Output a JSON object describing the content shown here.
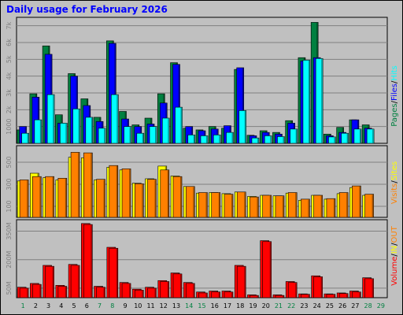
{
  "title": "Daily usage for February 2026",
  "colors": {
    "background": "#c0c0c0",
    "hits": "#00ffff",
    "files": "#0000ff",
    "pages": "#008040",
    "visits": "#ff8000",
    "sites": "#ffff00",
    "in_out": "#ff0000",
    "volume": "#ff0000",
    "weekend_label": "#008040",
    "weekday_label": "#000000"
  },
  "labels": {
    "top_panel": [
      "Pages",
      "Files",
      "Hits"
    ],
    "mid_panel": [
      "Visits",
      "Sites"
    ],
    "bot_panel": [
      "Volume",
      "IN",
      "OUT"
    ]
  },
  "chart_data": [
    {
      "type": "bar",
      "title": "Hits / Files / Pages",
      "categories": [
        "1",
        "2",
        "3",
        "4",
        "5",
        "6",
        "7",
        "8",
        "9",
        "10",
        "11",
        "12",
        "13",
        "14",
        "15",
        "16",
        "17",
        "18",
        "19",
        "20",
        "21",
        "22",
        "23",
        "24",
        "25",
        "26",
        "27",
        "28",
        "29"
      ],
      "weekend_days": [
        "1",
        "7",
        "8",
        "14",
        "15",
        "21",
        "22",
        "28",
        "29"
      ],
      "yticks": [
        1000,
        2000,
        3000,
        4000,
        5000,
        6000,
        7000
      ],
      "ytick_labels": [
        "1000",
        "2k",
        "3k",
        "4k",
        "5k",
        "6k",
        "7k"
      ],
      "ylim": [
        0,
        7500
      ],
      "series": [
        {
          "name": "Pages",
          "values": [
            800,
            2950,
            5800,
            1700,
            4150,
            2650,
            1550,
            6100,
            1900,
            1100,
            1500,
            2950,
            4800,
            900,
            800,
            1000,
            900,
            4400,
            480,
            750,
            650,
            1350,
            5100,
            7200,
            550,
            950,
            1400,
            1100,
            null
          ]
        },
        {
          "name": "Files",
          "values": [
            1000,
            2750,
            5300,
            1200,
            4000,
            2250,
            1300,
            5950,
            1450,
            1000,
            1150,
            2400,
            4700,
            1000,
            750,
            850,
            1050,
            4500,
            450,
            650,
            550,
            1200,
            4900,
            5100,
            450,
            650,
            1400,
            900,
            null
          ]
        },
        {
          "name": "Hits",
          "values": [
            600,
            1400,
            2900,
            1200,
            2050,
            1550,
            900,
            2900,
            1000,
            600,
            1000,
            1500,
            2150,
            500,
            450,
            500,
            650,
            1950,
            320,
            450,
            400,
            850,
            4950,
            5050,
            380,
            600,
            850,
            850,
            null
          ]
        }
      ]
    },
    {
      "type": "bar",
      "title": "Visits / Sites",
      "categories": [
        "1",
        "2",
        "3",
        "4",
        "5",
        "6",
        "7",
        "8",
        "9",
        "10",
        "11",
        "12",
        "13",
        "14",
        "15",
        "16",
        "17",
        "18",
        "19",
        "20",
        "21",
        "22",
        "23",
        "24",
        "25",
        "26",
        "27",
        "28",
        "29"
      ],
      "yticks": [
        100,
        300,
        500
      ],
      "ytick_labels": [
        "100",
        "300",
        "500"
      ],
      "ylim": [
        0,
        650
      ],
      "series": [
        {
          "name": "Sites",
          "values": [
            330,
            400,
            360,
            340,
            545,
            540,
            340,
            455,
            430,
            310,
            350,
            465,
            375,
            280,
            220,
            225,
            215,
            230,
            190,
            200,
            195,
            220,
            155,
            200,
            165,
            215,
            270,
            200,
            null
          ]
        },
        {
          "name": "Visits",
          "values": [
            340,
            370,
            370,
            355,
            590,
            585,
            345,
            470,
            440,
            305,
            345,
            430,
            370,
            280,
            225,
            225,
            210,
            230,
            185,
            200,
            195,
            225,
            165,
            200,
            170,
            225,
            285,
            210,
            null
          ]
        }
      ]
    },
    {
      "type": "bar",
      "title": "Volume",
      "categories": [
        "1",
        "2",
        "3",
        "4",
        "5",
        "6",
        "7",
        "8",
        "9",
        "10",
        "11",
        "12",
        "13",
        "14",
        "15",
        "16",
        "17",
        "18",
        "19",
        "20",
        "21",
        "22",
        "23",
        "24",
        "25",
        "26",
        "27",
        "28",
        "29"
      ],
      "yticks": [
        50,
        200,
        350
      ],
      "ytick_labels": [
        "50M",
        "200M",
        "350M"
      ],
      "ylim": [
        0,
        410
      ],
      "series": [
        {
          "name": "IN",
          "values": [
            55,
            75,
            170,
            65,
            175,
            390,
            60,
            265,
            80,
            45,
            55,
            90,
            130,
            80,
            30,
            35,
            35,
            170,
            15,
            300,
            15,
            85,
            20,
            115,
            20,
            25,
            35,
            105,
            null
          ]
        },
        {
          "name": "OUT",
          "values": [
            50,
            70,
            165,
            60,
            170,
            385,
            55,
            260,
            75,
            40,
            50,
            85,
            125,
            75,
            25,
            30,
            30,
            165,
            12,
            295,
            12,
            80,
            18,
            110,
            18,
            22,
            30,
            100,
            null
          ]
        }
      ]
    }
  ]
}
